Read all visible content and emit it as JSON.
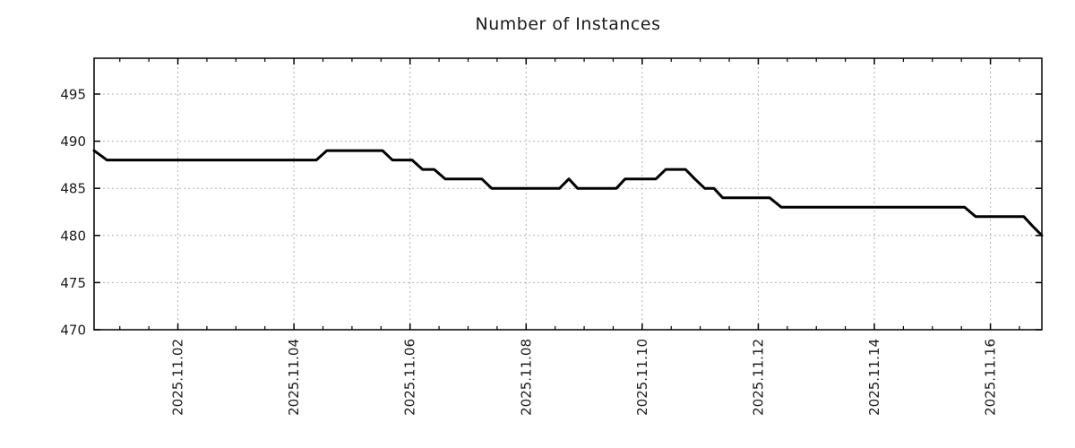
{
  "chart_data": {
    "type": "line",
    "title": "Number of Instances",
    "x_axis": {
      "unit": "days_from_plot_start",
      "range": [
        0,
        16.33
      ],
      "major_ticks": [
        {
          "d": 1.444,
          "label": "2025.11.02"
        },
        {
          "d": 3.444,
          "label": "2025.11.04"
        },
        {
          "d": 5.444,
          "label": "2025.11.06"
        },
        {
          "d": 7.444,
          "label": "2025.11.08"
        },
        {
          "d": 9.444,
          "label": "2025.11.10"
        },
        {
          "d": 11.444,
          "label": "2025.11.12"
        },
        {
          "d": 13.444,
          "label": "2025.11.14"
        },
        {
          "d": 15.444,
          "label": "2025.11.16"
        }
      ],
      "minor_tick_start": 0.444,
      "minor_tick_interval": 0.5,
      "label_rotation_deg": -90
    },
    "y_axis": {
      "range": [
        470,
        498.8
      ],
      "major_ticks": [
        470,
        475,
        480,
        485,
        490,
        495
      ]
    },
    "grid": {
      "show": true,
      "color": "#b0b0b0",
      "dash": "2,3"
    },
    "series": [
      {
        "name": "Number of Instances",
        "color": "#000000",
        "line_width": 3,
        "points": [
          [
            0.0,
            489
          ],
          [
            0.22,
            488
          ],
          [
            3.83,
            488
          ],
          [
            4.01,
            489
          ],
          [
            4.97,
            489
          ],
          [
            5.14,
            488
          ],
          [
            5.48,
            488
          ],
          [
            5.66,
            487
          ],
          [
            5.86,
            487
          ],
          [
            6.05,
            486
          ],
          [
            6.68,
            486
          ],
          [
            6.85,
            485
          ],
          [
            8.02,
            485
          ],
          [
            8.18,
            486
          ],
          [
            8.33,
            485
          ],
          [
            9.0,
            485
          ],
          [
            9.15,
            486
          ],
          [
            9.68,
            486
          ],
          [
            9.85,
            487
          ],
          [
            10.19,
            487
          ],
          [
            10.35,
            486
          ],
          [
            10.52,
            485
          ],
          [
            10.68,
            485
          ],
          [
            10.83,
            484
          ],
          [
            11.64,
            484
          ],
          [
            11.84,
            483
          ],
          [
            15.0,
            483
          ],
          [
            15.19,
            482
          ],
          [
            16.02,
            482
          ],
          [
            16.17,
            481
          ],
          [
            16.33,
            480
          ]
        ]
      }
    ],
    "styles": {
      "axis_color": "#000000",
      "text_color": "#1a1a1a",
      "background": "#ffffff",
      "tick_label_font_size": 15,
      "title_font_size": 19
    }
  }
}
